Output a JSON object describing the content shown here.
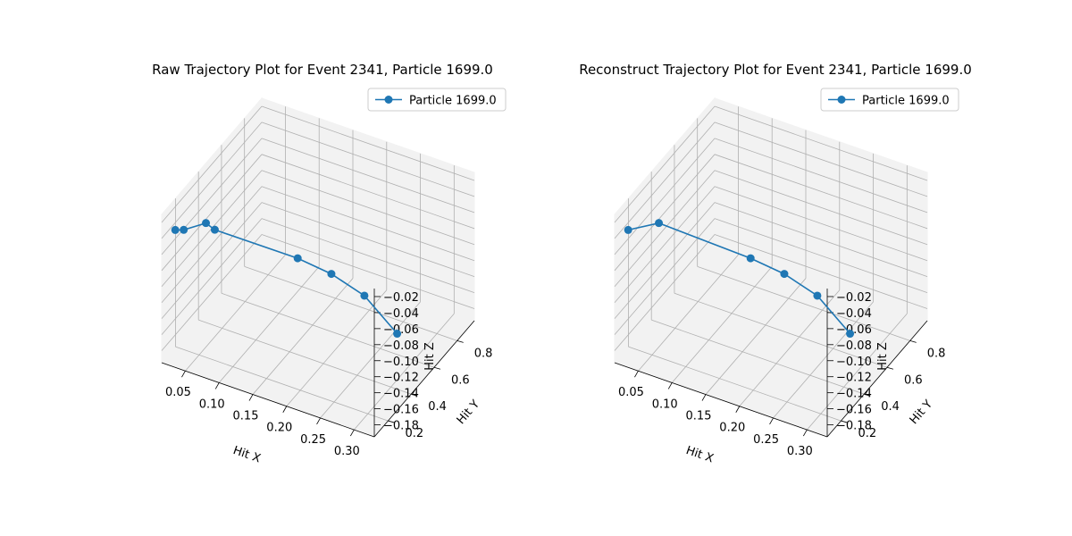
{
  "chart_data": [
    {
      "type": "line3d",
      "title": "Raw Trajectory Plot for Event 2341, Particle 1699.0",
      "xlabel": "Hit X",
      "ylabel": "Hit Y",
      "zlabel": "Hit Z",
      "xlim": [
        0.015,
        0.33
      ],
      "ylim": [
        0.08,
        0.95
      ],
      "zlim": [
        -0.195,
        -0.01
      ],
      "xticks": [
        0.05,
        0.1,
        0.15,
        0.2,
        0.25,
        0.3
      ],
      "xtick_labels": [
        "0.05",
        "0.10",
        "0.15",
        "0.20",
        "0.25",
        "0.30"
      ],
      "yticks": [
        0.2,
        0.4,
        0.6,
        0.8
      ],
      "ytick_labels": [
        "0.2",
        "0.4",
        "0.6",
        "0.8"
      ],
      "zticks": [
        -0.02,
        -0.04,
        -0.06,
        -0.08,
        -0.1,
        -0.12,
        -0.14,
        -0.16,
        -0.18
      ],
      "ztick_labels": [
        "−0.02",
        "−0.04",
        "−0.06",
        "−0.08",
        "−0.10",
        "−0.12",
        "−0.14",
        "−0.16",
        "−0.18"
      ],
      "grid": true,
      "legend": "top-right",
      "series": [
        {
          "name": "Particle 1699.0",
          "color": "#1f77b4",
          "marker": "circle",
          "x": [
            0.03,
            0.034,
            0.055,
            0.063,
            0.15,
            0.188,
            0.225,
            0.265
          ],
          "y": [
            0.11,
            0.16,
            0.23,
            0.26,
            0.47,
            0.54,
            0.61,
            0.66
          ],
          "z": [
            -0.03,
            -0.037,
            -0.034,
            -0.045,
            -0.09,
            -0.11,
            -0.138,
            -0.182
          ]
        }
      ]
    },
    {
      "type": "line3d",
      "title": "Reconstruct Trajectory Plot for Event 2341, Particle 1699.0",
      "xlabel": "Hit X",
      "ylabel": "Hit Y",
      "zlabel": "Hit Z",
      "xlim": [
        0.015,
        0.33
      ],
      "ylim": [
        0.08,
        0.95
      ],
      "zlim": [
        -0.195,
        -0.01
      ],
      "xticks": [
        0.05,
        0.1,
        0.15,
        0.2,
        0.25,
        0.3
      ],
      "xtick_labels": [
        "0.05",
        "0.10",
        "0.15",
        "0.20",
        "0.25",
        "0.30"
      ],
      "yticks": [
        0.2,
        0.4,
        0.6,
        0.8
      ],
      "ytick_labels": [
        "0.2",
        "0.4",
        "0.6",
        "0.8"
      ],
      "zticks": [
        -0.02,
        -0.04,
        -0.06,
        -0.08,
        -0.1,
        -0.12,
        -0.14,
        -0.16,
        -0.18
      ],
      "ztick_labels": [
        "−0.02",
        "−0.04",
        "−0.06",
        "−0.08",
        "−0.10",
        "−0.12",
        "−0.14",
        "−0.16",
        "−0.18"
      ],
      "grid": true,
      "legend": "top-right",
      "series": [
        {
          "name": "Particle 1699.0",
          "color": "#1f77b4",
          "marker": "circle",
          "x": [
            0.03,
            0.055,
            0.15,
            0.188,
            0.225,
            0.265
          ],
          "y": [
            0.11,
            0.23,
            0.47,
            0.54,
            0.61,
            0.66
          ],
          "z": [
            -0.03,
            -0.034,
            -0.09,
            -0.11,
            -0.138,
            -0.182
          ]
        }
      ]
    }
  ]
}
